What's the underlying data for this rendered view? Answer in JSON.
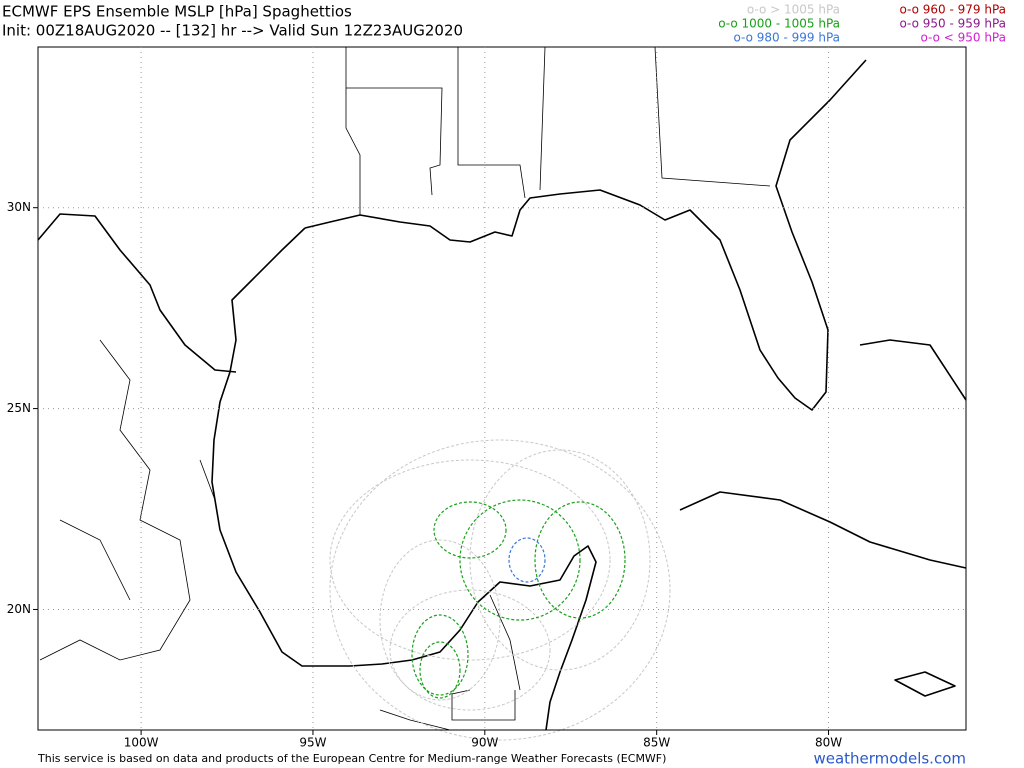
{
  "header": {
    "title": "ECMWF EPS Ensemble MSLP [hPa] Spaghettios",
    "init": "Init: 00Z18AUG2020 -- [132] hr --> Valid Sun 12Z23AUG2020"
  },
  "legend": [
    {
      "label": "o-o > 1005 hPa",
      "color": "#c8c8c8"
    },
    {
      "label": "o-o 1000 - 1005 hPa",
      "color": "#1aa01a"
    },
    {
      "label": "o-o 980 - 999 hPa",
      "color": "#3a78d8"
    },
    {
      "label": "o-o 960 - 979 hPa",
      "color": "#b00000"
    },
    {
      "label": "o-o 950 - 959 hPa",
      "color": "#8a1a8a"
    },
    {
      "label": "o-o < 950 hPa",
      "color": "#d020d0"
    }
  ],
  "map": {
    "lonlim": [
      -103,
      -76
    ],
    "latlim": [
      17,
      34
    ],
    "lon_ticks": [
      {
        "value": -100,
        "label": "100W"
      },
      {
        "value": -95,
        "label": "95W"
      },
      {
        "value": -90,
        "label": "90W"
      },
      {
        "value": -85,
        "label": "85W"
      },
      {
        "value": -80,
        "label": "80W"
      }
    ],
    "lat_ticks": [
      {
        "value": 20,
        "label": "20N"
      },
      {
        "value": 25,
        "label": "25N"
      },
      {
        "value": 30,
        "label": "30N"
      }
    ]
  },
  "footer": {
    "note": "This service is based on data and products of the European Centre for Medium-range Weather Forecasts (ECMWF)",
    "site": "weathermodels.com"
  }
}
